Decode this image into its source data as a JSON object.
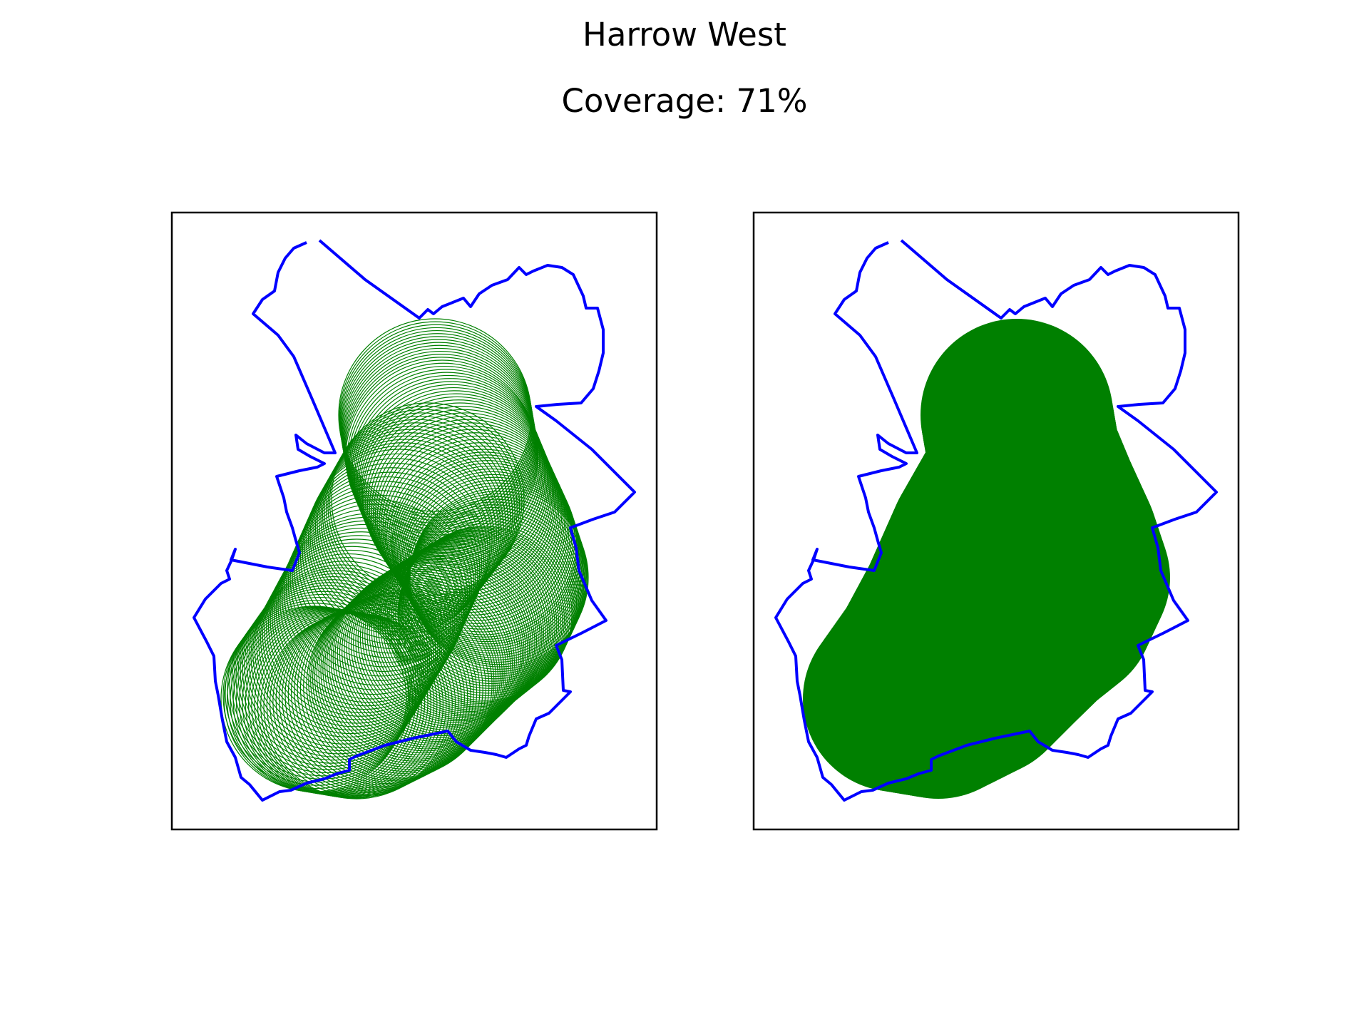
{
  "figure": {
    "title": "Harrow West",
    "subtitle": "Coverage: 71%"
  },
  "colors": {
    "boundary": "#0000ff",
    "coverage": "#008000",
    "frame": "#000000"
  },
  "panels": [
    {
      "name": "left-map-panel",
      "style": "outline-circles"
    },
    {
      "name": "right-map-panel",
      "style": "filled-circles"
    }
  ]
}
